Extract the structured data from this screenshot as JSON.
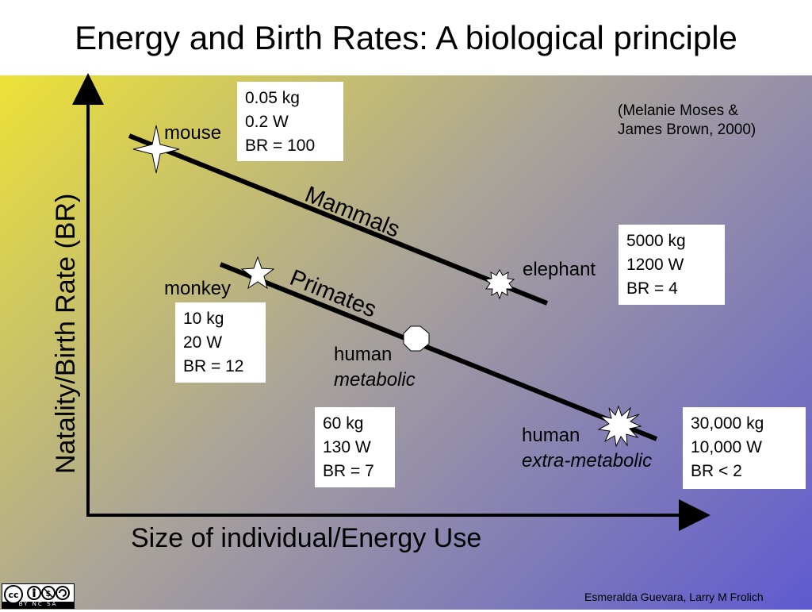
{
  "title": "Energy and Birth Rates:  A biological principle",
  "axes": {
    "ylabel": "Natality/Birth Rate (BR)",
    "xlabel": "Size of individual/Energy Use"
  },
  "lines": {
    "mammals": "Mammals",
    "primates": "Primates"
  },
  "credit": {
    "line1": "(Melanie Moses &",
    "line2": "James Brown, 2000)"
  },
  "points": {
    "mouse": {
      "label": "mouse",
      "mass": "0.05 kg",
      "power": "0.2 W",
      "br": "BR = 100"
    },
    "elephant": {
      "label": "elephant",
      "mass": "5000 kg",
      "power": "1200 W",
      "br": "BR = 4"
    },
    "monkey": {
      "label": "monkey",
      "mass": "10 kg",
      "power": "20 W",
      "br": "BR = 12"
    },
    "human_metabolic": {
      "label1": "human",
      "label2": "metabolic",
      "mass": "60 kg",
      "power": "130 W",
      "br": "BR = 7"
    },
    "human_extra": {
      "label1": "human",
      "label2": "extra-metabolic",
      "mass": "30,000 kg",
      "power": "10,000 W",
      "br": "BR < 2"
    }
  },
  "footer": "Esmeralda Guevara, Larry  M  Frolich",
  "license": {
    "icon": "creative-commons-by-nc-sa-icon",
    "text": "BY NC SA"
  },
  "colors": {
    "gradient_start": "#ece236",
    "gradient_mid": "#a9a39a",
    "gradient_end": "#5f5ad0"
  }
}
